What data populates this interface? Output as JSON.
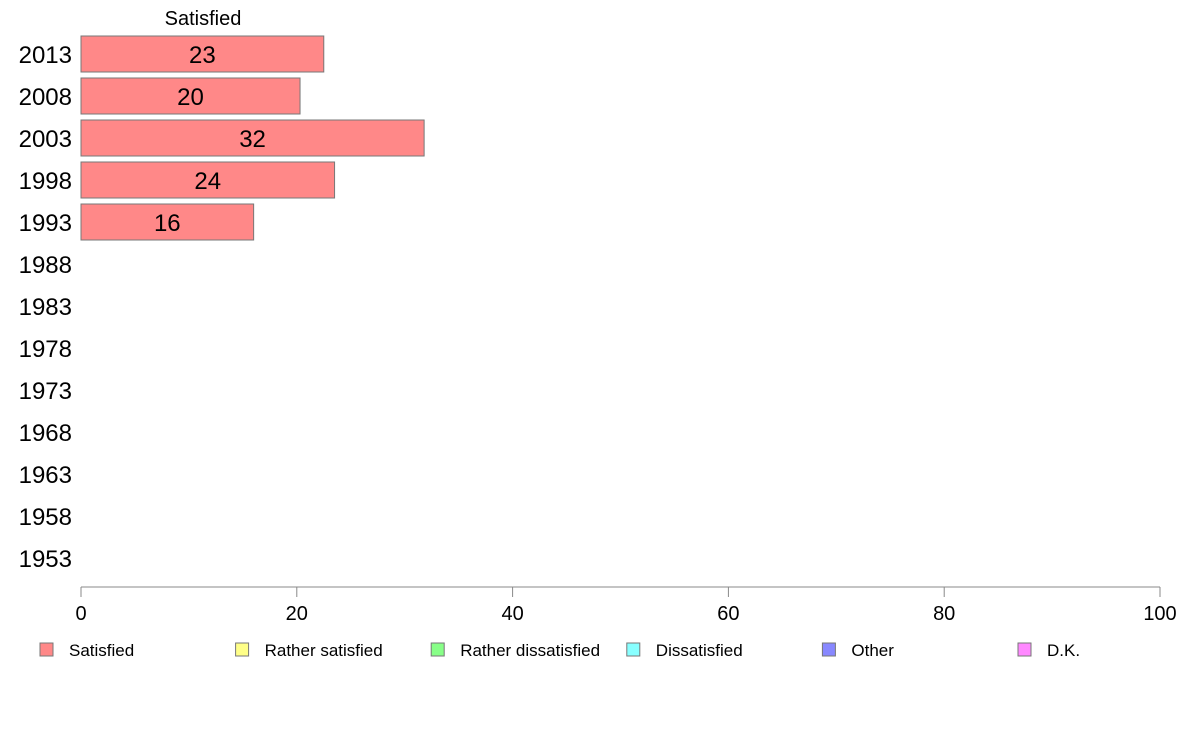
{
  "chart_data": {
    "type": "bar",
    "orientation": "horizontal",
    "stacked": true,
    "categories": [
      "2013",
      "2008",
      "2003",
      "1998",
      "1993",
      "1988",
      "1983",
      "1978",
      "1973",
      "1968",
      "1963",
      "1958",
      "1953"
    ],
    "series_header": "Satisfied",
    "series": [
      {
        "name": "Satisfied",
        "color": "#ff8888",
        "values": [
          23,
          20,
          32,
          24,
          16,
          null,
          null,
          null,
          null,
          null,
          null,
          null,
          null
        ]
      },
      {
        "name": "Rather satisfied",
        "color": "#ffff88",
        "values": [
          null,
          null,
          null,
          null,
          null,
          null,
          null,
          null,
          null,
          null,
          null,
          null,
          null
        ]
      },
      {
        "name": "Rather dissatisfied",
        "color": "#88ff88",
        "values": [
          null,
          null,
          null,
          null,
          null,
          null,
          null,
          null,
          null,
          null,
          null,
          null,
          null
        ]
      },
      {
        "name": "Dissatisfied",
        "color": "#88ffff",
        "values": [
          null,
          null,
          null,
          null,
          null,
          null,
          null,
          null,
          null,
          null,
          null,
          null,
          null
        ]
      },
      {
        "name": "Other",
        "color": "#8888ff",
        "values": [
          null,
          null,
          null,
          null,
          null,
          null,
          null,
          null,
          null,
          null,
          null,
          null,
          null
        ]
      },
      {
        "name": "D.K.",
        "color": "#ff88ff",
        "values": [
          null,
          null,
          null,
          null,
          null,
          null,
          null,
          null,
          null,
          null,
          null,
          null,
          null
        ]
      }
    ],
    "bar_values_exact": [
      22.5,
      20.3,
      31.8,
      23.5,
      16.0
    ],
    "xlim": [
      0,
      100
    ],
    "xticks": [
      0,
      20,
      40,
      60,
      80,
      100
    ],
    "grid": false,
    "legend_position": "bottom"
  }
}
